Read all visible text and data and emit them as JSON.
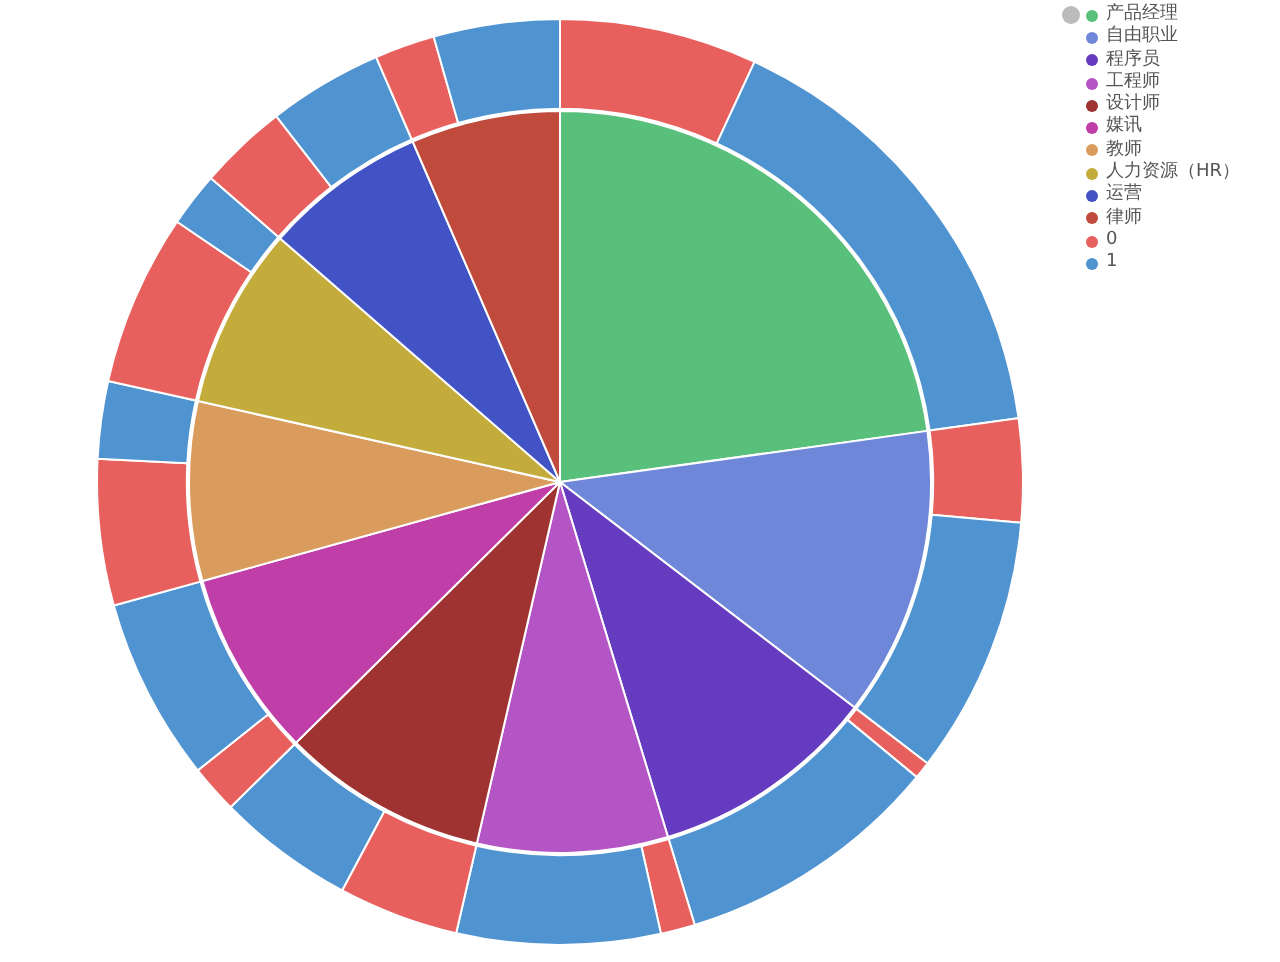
{
  "chart_data": [
    {
      "type": "pie",
      "legend": "top right",
      "categories": [
        "产品经理",
        "自由职业",
        "程序员",
        "工程师",
        "设计师",
        "媒讯",
        "教师",
        "人力资源（HR）",
        "运营",
        "律师"
      ],
      "values": [
        22.8,
        12.6,
        9.9,
        8.3,
        9.0,
        8.1,
        7.8,
        7.9,
        7.1,
        6.5
      ],
      "colors": [
        "#58c07a",
        "#6f87d8",
        "#653bbf",
        "#b455c6",
        "#9e3331",
        "#c03ea8",
        "#d99c5c",
        "#c4ac3c",
        "#4253c6",
        "#c04a3c"
      ]
    },
    {
      "type": "donut",
      "legend": "top right",
      "categories": [
        "0",
        "1",
        null,
        null,
        null,
        null,
        null,
        null,
        null,
        null,
        null,
        null,
        null,
        null,
        null,
        null,
        null,
        null,
        null,
        null
      ],
      "values": [
        6.9,
        15.9,
        3.6,
        9.0,
        0.6,
        9.3,
        1.2,
        7.1,
        4.2,
        4.8,
        1.7,
        6.4,
        5.1,
        2.7,
        6.0,
        1.9,
        3.1,
        4.0,
        2.1,
        4.4
      ],
      "colors": [
        "#e8605e",
        "#4f93d1",
        "#e8605e",
        "#4f93d1",
        "#e8605e",
        "#4f93d1",
        "#e8605e",
        "#4f93d1",
        "#e8605e",
        "#4f93d1",
        "#e8605e",
        "#4f93d1",
        "#e8605e",
        "#4f93d1",
        "#e8605e",
        "#4f93d1",
        "#e8605e",
        "#4f93d1",
        "#e8605e",
        "#4f93d1"
      ]
    }
  ]
}
